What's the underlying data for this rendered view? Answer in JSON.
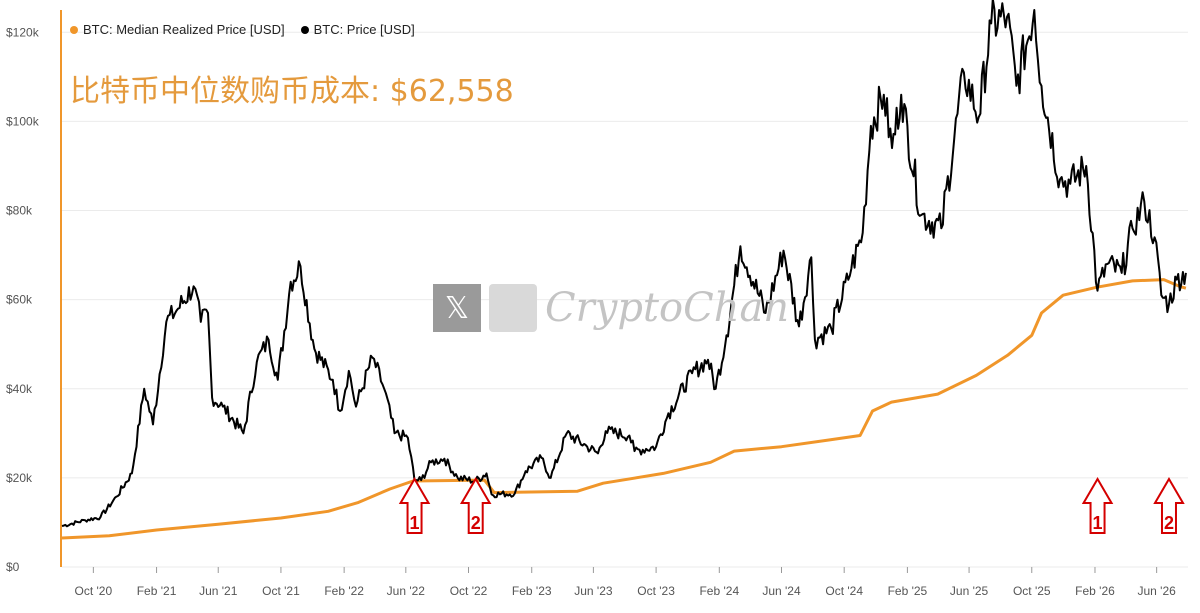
{
  "colors": {
    "price": "#000000",
    "realized": "#f0962a",
    "title": "#e49a3d",
    "grid": "#ebebeb",
    "arrow": "#d40000",
    "axis_left": "#f0962a"
  },
  "legend": [
    {
      "label": "BTC: Median Realized Price [USD]",
      "color": "#f0962a"
    },
    {
      "label": "BTC: Price [USD]",
      "color": "#000000"
    }
  ],
  "headline": "比特币中位数购币成本: $62,558",
  "watermark": {
    "x_icon": "x-logo-icon",
    "text": "CryptoChan"
  },
  "chart_data": {
    "type": "line",
    "yticks": [
      0,
      20000,
      40000,
      60000,
      80000,
      100000,
      120000
    ],
    "ytick_labels": [
      "$0",
      "$20k",
      "$40k",
      "$60k",
      "$80k",
      "$100k",
      "$120k"
    ],
    "ylim": [
      0,
      125000
    ],
    "xlim": [
      "2020-08-01",
      "2026-08-01"
    ],
    "xticks": [
      "2020-10-01",
      "2021-02-01",
      "2021-06-01",
      "2021-10-01",
      "2022-02-01",
      "2022-06-01",
      "2022-10-01",
      "2023-02-01",
      "2023-06-01",
      "2023-10-01",
      "2024-02-01",
      "2024-06-01",
      "2024-10-01",
      "2025-02-01",
      "2025-06-01",
      "2025-10-01",
      "2026-02-01",
      "2026-06-01"
    ],
    "xtick_labels": [
      "Oct '20",
      "Feb '21",
      "Jun '21",
      "Oct '21",
      "Feb '22",
      "Jun '22",
      "Oct '22",
      "Feb '23",
      "Jun '23",
      "Oct '23",
      "Feb '24",
      "Jun '24",
      "Oct '24",
      "Feb '25",
      "Jun '25",
      "Oct '25",
      "Feb '26",
      "Jun '26"
    ],
    "series": [
      {
        "name": "BTC: Price [USD]",
        "color": "#000000",
        "points": [
          [
            "2020-08-01",
            9200
          ],
          [
            "2020-09-15",
            10500
          ],
          [
            "2020-10-15",
            11200
          ],
          [
            "2020-11-15",
            15800
          ],
          [
            "2020-12-15",
            21000
          ],
          [
            "2021-01-08",
            40000
          ],
          [
            "2021-01-25",
            32000
          ],
          [
            "2021-02-20",
            55000
          ],
          [
            "2021-03-15",
            58000
          ],
          [
            "2021-04-14",
            63000
          ],
          [
            "2021-04-28",
            55000
          ],
          [
            "2021-05-12",
            57000
          ],
          [
            "2021-05-20",
            38000
          ],
          [
            "2021-06-10",
            36000
          ],
          [
            "2021-07-20",
            30000
          ],
          [
            "2021-08-15",
            46000
          ],
          [
            "2021-09-07",
            51000
          ],
          [
            "2021-09-25",
            42000
          ],
          [
            "2021-10-20",
            64000
          ],
          [
            "2021-11-08",
            67500
          ],
          [
            "2021-12-05",
            49000
          ],
          [
            "2022-01-10",
            42000
          ],
          [
            "2022-01-24",
            35000
          ],
          [
            "2022-02-10",
            44000
          ],
          [
            "2022-02-24",
            36000
          ],
          [
            "2022-03-28",
            47000
          ],
          [
            "2022-04-20",
            40000
          ],
          [
            "2022-05-10",
            30000
          ],
          [
            "2022-06-05",
            29000
          ],
          [
            "2022-06-18",
            19500
          ],
          [
            "2022-07-01",
            19500
          ],
          [
            "2022-07-20",
            23500
          ],
          [
            "2022-08-15",
            24300
          ],
          [
            "2022-09-10",
            20000
          ],
          [
            "2022-10-15",
            19300
          ],
          [
            "2022-11-05",
            21000
          ],
          [
            "2022-11-15",
            16300
          ],
          [
            "2022-12-30",
            16500
          ],
          [
            "2023-01-20",
            21500
          ],
          [
            "2023-02-20",
            24500
          ],
          [
            "2023-03-10",
            20000
          ],
          [
            "2023-04-10",
            30000
          ],
          [
            "2023-05-20",
            27000
          ],
          [
            "2023-06-10",
            25500
          ],
          [
            "2023-06-25",
            30500
          ],
          [
            "2023-08-10",
            29500
          ],
          [
            "2023-08-20",
            26000
          ],
          [
            "2023-10-01",
            27000
          ],
          [
            "2023-10-25",
            34500
          ],
          [
            "2023-12-10",
            43500
          ],
          [
            "2024-01-10",
            46500
          ],
          [
            "2024-01-25",
            40000
          ],
          [
            "2024-02-15",
            52000
          ],
          [
            "2024-03-13",
            72000
          ],
          [
            "2024-05-01",
            57000
          ],
          [
            "2024-06-05",
            71000
          ],
          [
            "2024-07-05",
            54000
          ],
          [
            "2024-07-29",
            69500
          ],
          [
            "2024-08-05",
            51000
          ],
          [
            "2024-09-06",
            53500
          ],
          [
            "2024-10-15",
            67000
          ],
          [
            "2024-11-06",
            75000
          ],
          [
            "2024-11-22",
            99000
          ],
          [
            "2024-12-17",
            106000
          ],
          [
            "2025-01-02",
            94000
          ],
          [
            "2025-01-20",
            106000
          ],
          [
            "2025-02-28",
            79000
          ],
          [
            "2025-04-08",
            76000
          ],
          [
            "2025-05-22",
            111000
          ],
          [
            "2025-06-20",
            101000
          ],
          [
            "2025-07-14",
            122000
          ],
          [
            "2025-08-14",
            123500
          ],
          [
            "2025-09-01",
            108000
          ],
          [
            "2025-10-06",
            125000
          ],
          [
            "2025-10-20",
            108000
          ],
          [
            "2025-11-25",
            87000
          ],
          [
            "2025-12-15",
            86000
          ],
          [
            "2026-01-15",
            90000
          ],
          [
            "2026-02-06",
            62000
          ],
          [
            "2026-02-25",
            68000
          ],
          [
            "2026-03-25",
            66000
          ],
          [
            "2026-04-15",
            76000
          ],
          [
            "2026-05-08",
            82000
          ],
          [
            "2026-05-28",
            74000
          ],
          [
            "2026-06-10",
            61000
          ],
          [
            "2026-06-25",
            59000
          ],
          [
            "2026-07-10",
            64500
          ],
          [
            "2026-07-28",
            66000
          ]
        ]
      },
      {
        "name": "BTC: Median Realized Price [USD]",
        "color": "#f0962a",
        "points": [
          [
            "2020-08-01",
            6500
          ],
          [
            "2020-11-01",
            7000
          ],
          [
            "2021-02-01",
            8300
          ],
          [
            "2021-06-01",
            9600
          ],
          [
            "2021-10-01",
            11000
          ],
          [
            "2022-01-01",
            12500
          ],
          [
            "2022-03-01",
            14500
          ],
          [
            "2022-05-01",
            17500
          ],
          [
            "2022-06-15",
            19300
          ],
          [
            "2022-11-01",
            19500
          ],
          [
            "2022-11-20",
            16700
          ],
          [
            "2023-05-01",
            17000
          ],
          [
            "2023-06-20",
            18800
          ],
          [
            "2023-10-15",
            21000
          ],
          [
            "2024-01-15",
            23500
          ],
          [
            "2024-03-01",
            26000
          ],
          [
            "2024-06-01",
            27000
          ],
          [
            "2024-09-01",
            28500
          ],
          [
            "2024-11-01",
            29500
          ],
          [
            "2024-11-25",
            35000
          ],
          [
            "2025-01-01",
            37000
          ],
          [
            "2025-04-01",
            38800
          ],
          [
            "2025-06-15",
            43000
          ],
          [
            "2025-08-15",
            47500
          ],
          [
            "2025-10-01",
            52000
          ],
          [
            "2025-10-20",
            57000
          ],
          [
            "2025-12-01",
            61000
          ],
          [
            "2026-02-05",
            62800
          ],
          [
            "2026-04-15",
            64200
          ],
          [
            "2026-06-15",
            64500
          ],
          [
            "2026-07-15",
            63000
          ],
          [
            "2026-07-28",
            62558
          ]
        ]
      }
    ],
    "annotations": [
      {
        "label": "1",
        "x": "2022-06-18"
      },
      {
        "label": "2",
        "x": "2022-10-15"
      },
      {
        "label": "1",
        "x": "2026-02-06"
      },
      {
        "label": "2",
        "x": "2026-06-25"
      }
    ]
  }
}
